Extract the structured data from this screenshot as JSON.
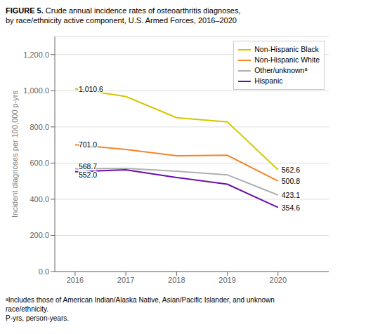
{
  "chart_data": {
    "type": "line",
    "title": "FIGURE 5.",
    "subtitle": "Crude annual incidence rates of osteoarthritis diagnoses,\nby race/ethnicity active component, U.S. Armed Forces, 2016–2020",
    "x": [
      2016,
      2017,
      2018,
      2019,
      2020
    ],
    "series": [
      {
        "name": "Non-Hispanic Black",
        "color": "#d4c800",
        "values": [
          1010.6,
          968.0,
          851.0,
          828.0,
          562.6
        ]
      },
      {
        "name": "Non-Hispanic White",
        "color": "#f4862a",
        "values": [
          701.0,
          675.0,
          640.0,
          643.0,
          500.8
        ]
      },
      {
        "name": "Other/unknownᵃ",
        "color": "#b0b0b0",
        "values": [
          568.7,
          570.0,
          555.0,
          535.0,
          423.1
        ]
      },
      {
        "name": "Hispanic",
        "color": "#6a0dad",
        "values": [
          552.0,
          563.0,
          520.0,
          483.0,
          354.6
        ]
      }
    ],
    "ylabel": "Incident diagnoses per 100,000 p-yrs",
    "xlim": [
      2015.6,
      2021.0
    ],
    "xticks": [
      2016,
      2017,
      2018,
      2019,
      2020
    ],
    "ylim": [
      0,
      1300
    ],
    "yticks": [
      {
        "value": 0,
        "label": "0.0"
      },
      {
        "value": 200,
        "label": "200.0"
      },
      {
        "value": 400,
        "label": "400.0"
      },
      {
        "value": 600,
        "label": "600.0"
      },
      {
        "value": 800,
        "label": "800.0"
      },
      {
        "value": 1000,
        "label": "1,000.0"
      },
      {
        "value": 1200,
        "label": "1,200.0"
      }
    ],
    "grid": true,
    "legend": "upper right",
    "annotations": [
      {
        "text": "1,010.6",
        "x": 2016,
        "y": 1010.6
      },
      {
        "text": "701.0",
        "x": 2016,
        "y": 701.0
      },
      {
        "text": "568.7",
        "x": 2016,
        "y": 568.7
      },
      {
        "text": "552.0",
        "x": 2016,
        "y": 552.0
      },
      {
        "text": "562.6",
        "x": 2020,
        "y": 562.6
      },
      {
        "text": "500.8",
        "x": 2020,
        "y": 500.8
      },
      {
        "text": "423.1",
        "x": 2020,
        "y": 423.1
      },
      {
        "text": "354.6",
        "x": 2020,
        "y": 354.6
      },
      {
        "text": "ᵃIncludes those of American Indian/Alaska Native, Asian/Pacific Islander, and unknown\nrace/ethnicity."
      },
      {
        "text": "P-yrs, person-years."
      }
    ]
  }
}
